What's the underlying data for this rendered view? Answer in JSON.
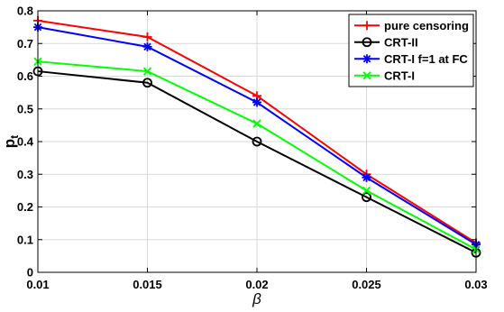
{
  "chart_data": {
    "type": "line",
    "xlabel": "β",
    "ylabel": "p",
    "ylabel_sub": "t",
    "x": [
      0.01,
      0.015,
      0.02,
      0.025,
      0.03
    ],
    "xlim": [
      0.01,
      0.03
    ],
    "ylim": [
      0,
      0.8
    ],
    "xticks": [
      "0.01",
      "0.015",
      "0.02",
      "0.025",
      "0.03"
    ],
    "yticks": [
      "0",
      "0.1",
      "0.2",
      "0.3",
      "0.4",
      "0.5",
      "0.6",
      "0.7",
      "0.8"
    ],
    "grid": true,
    "legend_position": "top-right",
    "series": [
      {
        "name": "pure censoring",
        "values": [
          0.77,
          0.72,
          0.54,
          0.3,
          0.09
        ],
        "color": "#ff0000",
        "marker": "plus"
      },
      {
        "name": "CRT-II",
        "values": [
          0.615,
          0.58,
          0.4,
          0.23,
          0.06
        ],
        "color": "#000000",
        "marker": "circle"
      },
      {
        "name": "CRT-I f=1 at FC",
        "values": [
          0.75,
          0.69,
          0.52,
          0.29,
          0.085
        ],
        "color": "#0000ff",
        "marker": "star"
      },
      {
        "name": "CRT-I",
        "values": [
          0.645,
          0.615,
          0.455,
          0.25,
          0.07
        ],
        "color": "#00ff00",
        "marker": "x"
      }
    ]
  }
}
